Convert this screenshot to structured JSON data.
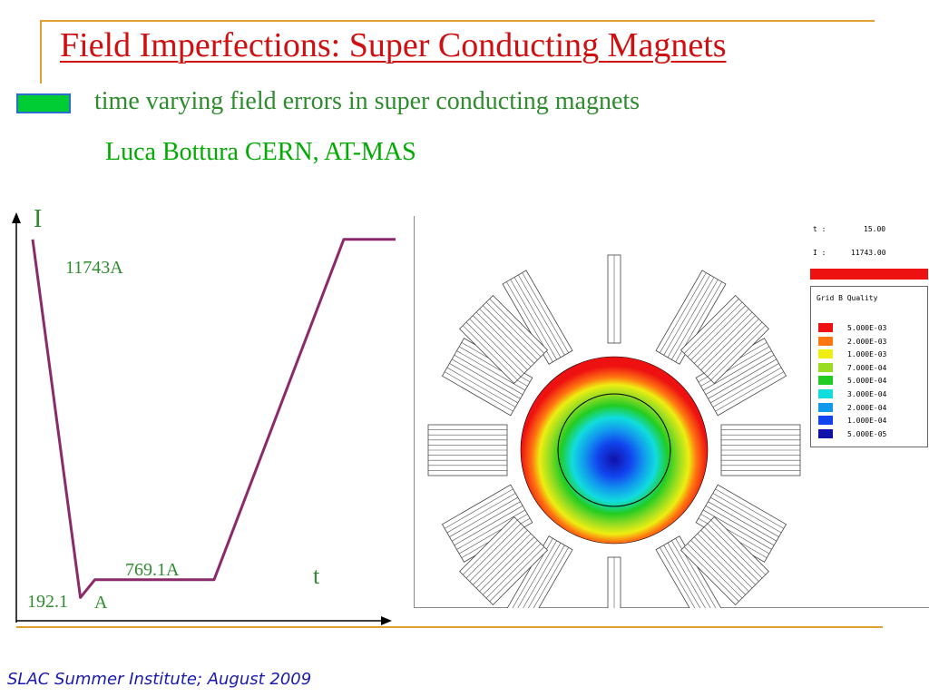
{
  "slide": {
    "title": "Field Imperfections: Super Conducting Magnets",
    "subtitle": "time varying field errors in super conducting magnets",
    "author": "Luca Bottura CERN, AT-MAS",
    "footer": "SLAC Summer Institute; August 2009"
  },
  "colors": {
    "title": "#d01010",
    "text_green": "#2e8b2e",
    "curve": "#8b2a6b",
    "rule": "#e0a030",
    "bullet_fill": "#00cc33",
    "bullet_border": "#2a6fcf"
  },
  "chart_data": {
    "type": "line",
    "ylabel": "I",
    "xlabel": "t",
    "annotations": [
      "11743A",
      "769.1A",
      "192.1",
      "A"
    ],
    "series": [
      {
        "values_A": [
          11743,
          192.1,
          769.1,
          769.1,
          11743,
          11743
        ],
        "points": [
          [
            0,
            11743
          ],
          [
            9.2,
            192.1
          ],
          [
            12,
            769.1
          ],
          [
            35,
            769.1
          ],
          [
            60,
            11743
          ],
          [
            70,
            11743
          ]
        ]
      }
    ],
    "xlim": [
      0,
      70
    ],
    "ylim": [
      0,
      12000
    ]
  },
  "simulation": {
    "t_label": "t :",
    "t_value": "15.00",
    "i_label": "I :",
    "i_value": "11743.00",
    "legend_title": "Grid B Quality",
    "legend": [
      {
        "value": "5.000E-03",
        "color": "#ee1111"
      },
      {
        "value": "2.000E-03",
        "color": "#ff7711"
      },
      {
        "value": "1.000E-03",
        "color": "#eeee11"
      },
      {
        "value": "7.000E-04",
        "color": "#99dd22"
      },
      {
        "value": "5.000E-04",
        "color": "#22cc22"
      },
      {
        "value": "3.000E-04",
        "color": "#11dddd"
      },
      {
        "value": "2.000E-04",
        "color": "#1199ee"
      },
      {
        "value": "1.000E-04",
        "color": "#1144ee"
      },
      {
        "value": "5.000E-05",
        "color": "#1111aa"
      }
    ]
  }
}
